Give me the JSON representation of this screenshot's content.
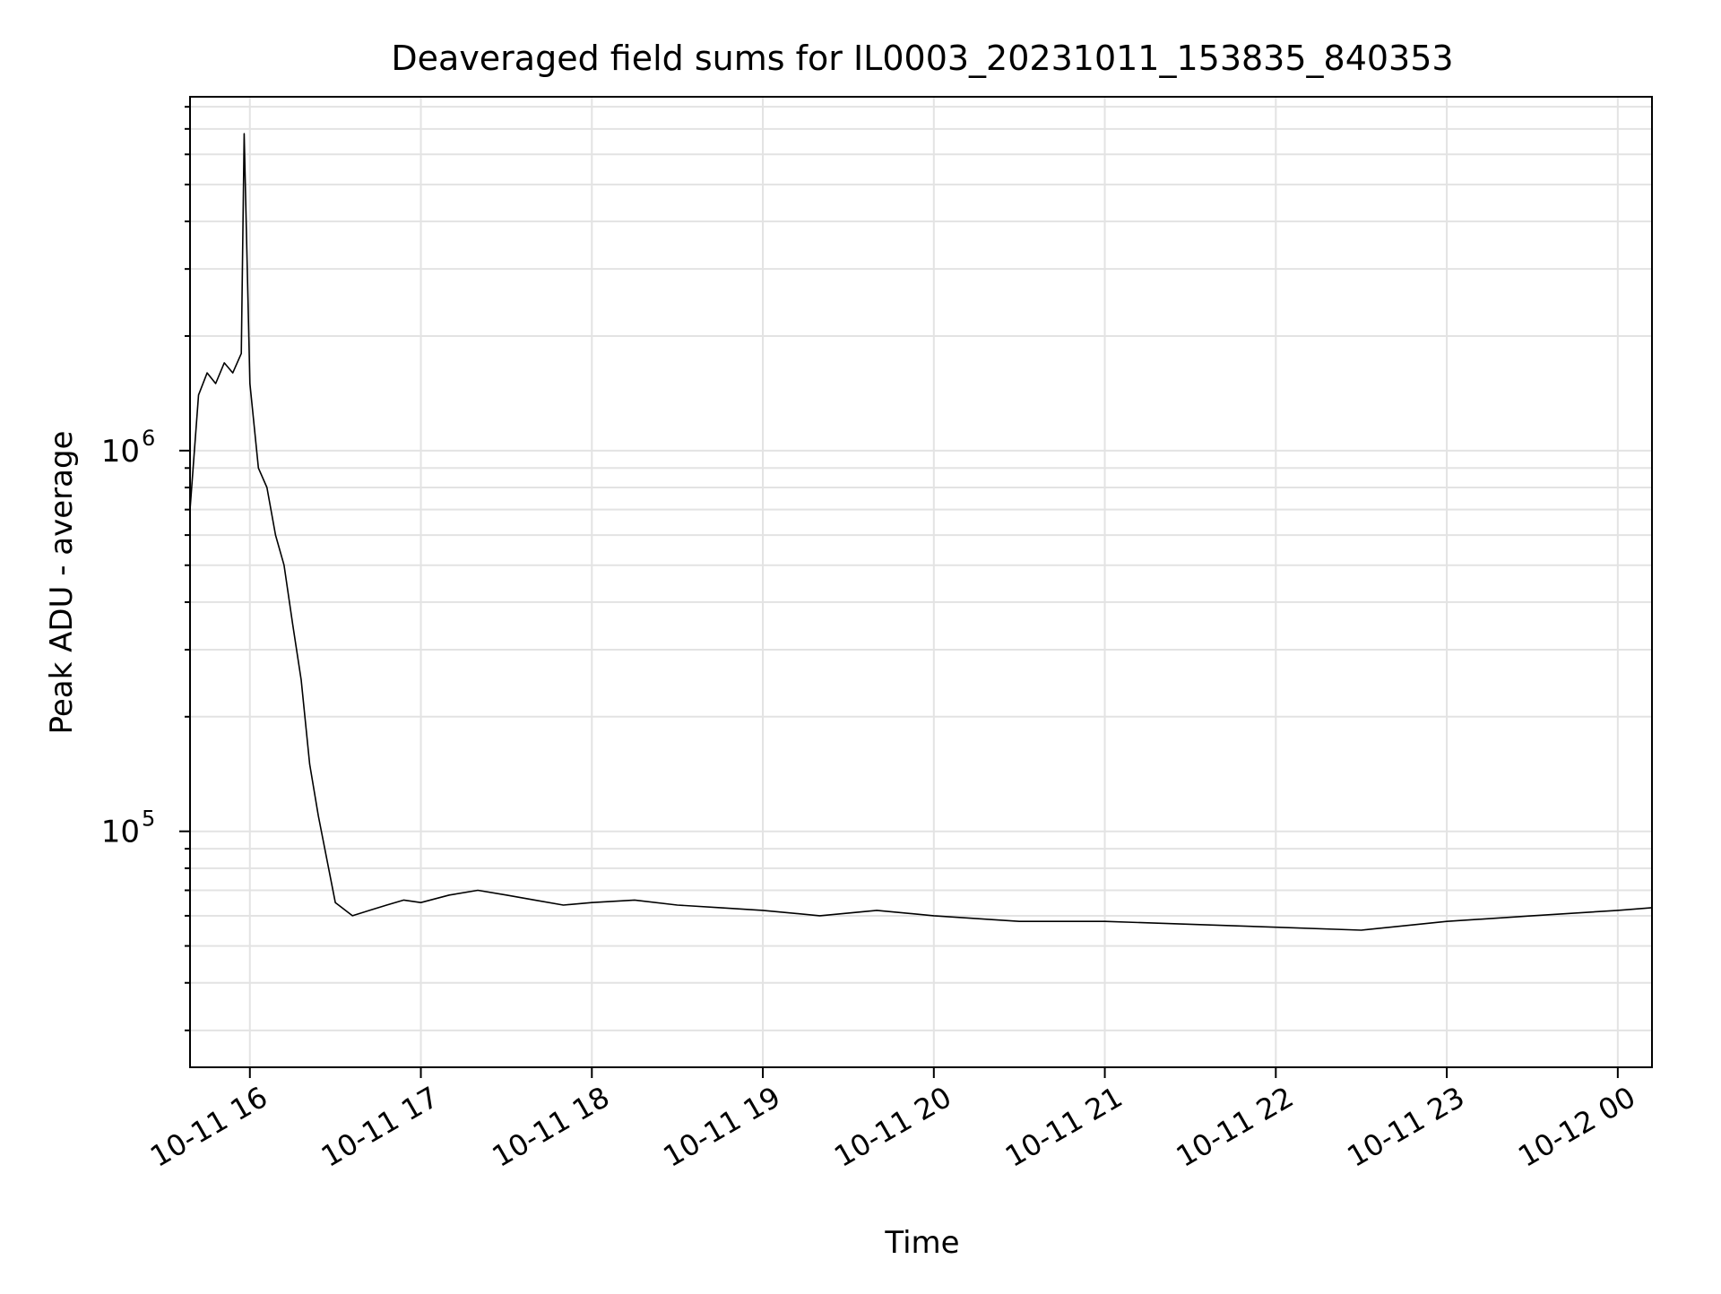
{
  "chart_data": {
    "type": "line",
    "title": "Deaveraged field sums for IL0003_20231011_153835_840353",
    "xlabel": "Time",
    "ylabel": "Peak ADU - average",
    "yscale": "log",
    "grid": true,
    "legend": "none",
    "line_color": "#000000",
    "xlim": [
      "2023-10-11 15:39",
      "2023-10-12 00:12"
    ],
    "ylim": [
      24000,
      8500000
    ],
    "x_ticks": [
      {
        "t": "2023-10-11 16:00",
        "label": "10-11 16"
      },
      {
        "t": "2023-10-11 17:00",
        "label": "10-11 17"
      },
      {
        "t": "2023-10-11 18:00",
        "label": "10-11 18"
      },
      {
        "t": "2023-10-11 19:00",
        "label": "10-11 19"
      },
      {
        "t": "2023-10-11 20:00",
        "label": "10-11 20"
      },
      {
        "t": "2023-10-11 21:00",
        "label": "10-11 21"
      },
      {
        "t": "2023-10-11 22:00",
        "label": "10-11 22"
      },
      {
        "t": "2023-10-11 23:00",
        "label": "10-11 23"
      },
      {
        "t": "2023-10-12 00:00",
        "label": "10-12 00"
      }
    ],
    "y_ticks": [
      {
        "value": 100000,
        "base": "10",
        "exp": "5"
      },
      {
        "value": 1000000,
        "base": "10",
        "exp": "6"
      }
    ],
    "series": [
      {
        "x": [
          "2023-10-11 15:39",
          "2023-10-11 15:42",
          "2023-10-11 15:45",
          "2023-10-11 15:48",
          "2023-10-11 15:51",
          "2023-10-11 15:54",
          "2023-10-11 15:57",
          "2023-10-11 15:58",
          "2023-10-11 16:00",
          "2023-10-11 16:03",
          "2023-10-11 16:06",
          "2023-10-11 16:09",
          "2023-10-11 16:12",
          "2023-10-11 16:15",
          "2023-10-11 16:18",
          "2023-10-11 16:21",
          "2023-10-11 16:24",
          "2023-10-11 16:30",
          "2023-10-11 16:36",
          "2023-10-11 16:42",
          "2023-10-11 16:48",
          "2023-10-11 16:54",
          "2023-10-11 17:00",
          "2023-10-11 17:10",
          "2023-10-11 17:20",
          "2023-10-11 17:30",
          "2023-10-11 17:40",
          "2023-10-11 17:50",
          "2023-10-11 18:00",
          "2023-10-11 18:15",
          "2023-10-11 18:30",
          "2023-10-11 18:45",
          "2023-10-11 19:00",
          "2023-10-11 19:20",
          "2023-10-11 19:40",
          "2023-10-11 20:00",
          "2023-10-11 20:30",
          "2023-10-11 21:00",
          "2023-10-11 21:30",
          "2023-10-11 22:00",
          "2023-10-11 22:30",
          "2023-10-11 23:00",
          "2023-10-11 23:30",
          "2023-10-12 00:00",
          "2023-10-12 00:12"
        ],
        "y": [
          700000,
          1400000,
          1600000,
          1500000,
          1700000,
          1600000,
          1800000,
          6800000,
          1500000,
          900000,
          800000,
          600000,
          500000,
          350000,
          250000,
          150000,
          110000,
          65000,
          60000,
          62000,
          64000,
          66000,
          65000,
          68000,
          70000,
          68000,
          66000,
          64000,
          65000,
          66000,
          64000,
          63000,
          62000,
          60000,
          62000,
          60000,
          58000,
          58000,
          57000,
          56000,
          55000,
          58000,
          60000,
          62000,
          63000
        ]
      }
    ]
  }
}
